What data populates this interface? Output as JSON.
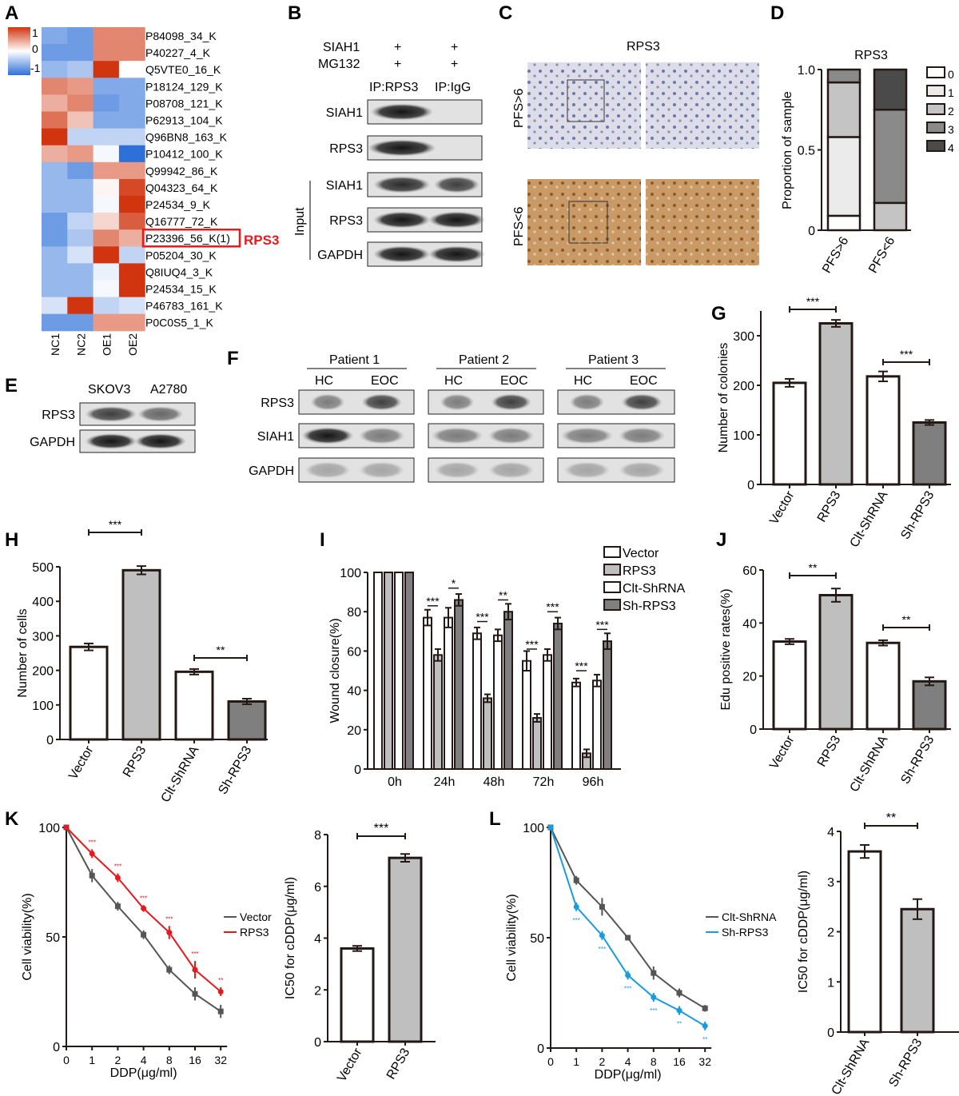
{
  "panel_letters": [
    "A",
    "B",
    "C",
    "D",
    "E",
    "F",
    "G",
    "H",
    "I",
    "J",
    "K",
    "L"
  ],
  "colors": {
    "red": "#e8191d",
    "blue": "#1a9be0",
    "dark": "#555555",
    "heat_high": "#d0350f",
    "heat_low": "#2f70d8",
    "mid_gray": "#7f7f7f",
    "light_gray": "#bfbfbf"
  },
  "heatmap": {
    "scale_labels": [
      "1",
      "0",
      "-1"
    ],
    "columns": [
      "NC1",
      "NC2",
      "OE1",
      "OE2"
    ],
    "rows": [
      {
        "label": "P84098_34_K",
        "values": [
          -0.6,
          -0.7,
          0.6,
          0.6
        ]
      },
      {
        "label": "P40227_4_K",
        "values": [
          -0.7,
          -0.7,
          0.6,
          0.6
        ]
      },
      {
        "label": "Q5VTE0_16_K",
        "values": [
          -0.5,
          -0.4,
          1,
          0
        ]
      },
      {
        "label": "P18124_129_K",
        "values": [
          0.6,
          0.5,
          -0.6,
          -0.6
        ]
      },
      {
        "label": "P08708_121_K",
        "values": [
          0.4,
          0.6,
          -0.7,
          -0.6
        ]
      },
      {
        "label": "P62913_104_K",
        "values": [
          0.7,
          0.3,
          -0.6,
          -0.6
        ]
      },
      {
        "label": "Q96BN8_163_K",
        "values": [
          1,
          -0.3,
          -0.3,
          -0.3
        ]
      },
      {
        "label": "P10412_100_K",
        "values": [
          0.4,
          0.5,
          -0.05,
          -1
        ]
      },
      {
        "label": "Q99942_86_K",
        "values": [
          -0.5,
          -0.7,
          0.5,
          0.5
        ]
      },
      {
        "label": "Q04323_64_K",
        "values": [
          -0.5,
          -0.5,
          0.05,
          0.9
        ]
      },
      {
        "label": "P24534_9_K",
        "values": [
          -0.5,
          -0.5,
          -0.05,
          1
        ]
      },
      {
        "label": "Q16777_72_K",
        "values": [
          -0.7,
          -0.3,
          0.2,
          0.8
        ]
      },
      {
        "label": "P23396_56_K(1)",
        "values": [
          -0.7,
          -0.4,
          0.6,
          0.4
        ]
      },
      {
        "label": "P05204_30_K",
        "values": [
          -0.5,
          -0.2,
          1,
          -0.3
        ]
      },
      {
        "label": "Q8IUQ4_3_K",
        "values": [
          -0.5,
          -0.5,
          -0.1,
          1
        ]
      },
      {
        "label": "P24534_15_K",
        "values": [
          -0.5,
          -0.5,
          -0.05,
          1
        ]
      },
      {
        "label": "P46783_161_K",
        "values": [
          -0.2,
          1,
          -0.3,
          -0.2
        ]
      },
      {
        "label": "P0C0S5_1_K",
        "values": [
          -0.7,
          -0.7,
          0.5,
          0.5
        ]
      }
    ],
    "highlight": "RPS3"
  },
  "panel_b": {
    "row1": "SIAH1",
    "row2": "MG132",
    "plus": "+",
    "ip_rps3": "IP:RPS3",
    "ip_igg": "IP:IgG",
    "input": "Input",
    "bands": [
      "SIAH1",
      "RPS3",
      "SIAH1",
      "RPS3",
      "GAPDH"
    ]
  },
  "panel_c": {
    "title": "RPS3",
    "row_top": "PFS>6",
    "row_bottom": "PFS<6"
  },
  "panel_e": {
    "cols": [
      "SKOV3",
      "A2780"
    ],
    "bands": [
      "RPS3",
      "GAPDH"
    ]
  },
  "panel_f": {
    "patients": [
      "Patient 1",
      "Patient 2",
      "Patient 3"
    ],
    "hc": "HC",
    "eoc": "EOC",
    "bands": [
      "RPS3",
      "SIAH1",
      "GAPDH"
    ]
  },
  "chart_data": [
    {
      "id": "D",
      "type": "bar",
      "stacked": true,
      "title": "RPS3",
      "ylabel": "Proportion of sample",
      "categories": [
        "PFS>6",
        "PFS<6"
      ],
      "ylim": [
        0,
        1
      ],
      "yticks": [
        "0",
        "0.5",
        "1.0"
      ],
      "series": [
        {
          "name": "0",
          "color": "#ffffff",
          "values": [
            0.09,
            0
          ]
        },
        {
          "name": "1",
          "color": "#ebebeb",
          "values": [
            0.49,
            0
          ]
        },
        {
          "name": "2",
          "color": "#c4c4c4",
          "values": [
            0.34,
            0.17
          ]
        },
        {
          "name": "3",
          "color": "#8a8a8a",
          "values": [
            0.08,
            0.58
          ]
        },
        {
          "name": "4",
          "color": "#4a4a4a",
          "values": [
            0,
            0.25
          ]
        }
      ]
    },
    {
      "id": "G",
      "type": "bar",
      "ylabel": "Number of colonies",
      "categories": [
        "Vector",
        "RPS3",
        "Clt-ShRNA",
        "Sh-RPS3"
      ],
      "values": [
        205,
        325,
        218,
        125
      ],
      "errors": [
        8,
        7,
        10,
        5
      ],
      "ylim": [
        0,
        350
      ],
      "yticks": [
        "0",
        "100",
        "200",
        "300"
      ],
      "significance": [
        {
          "pair": [
            0,
            1
          ],
          "label": "***"
        },
        {
          "pair": [
            2,
            3
          ],
          "label": "***"
        }
      ]
    },
    {
      "id": "H",
      "type": "bar",
      "ylabel": "Number of cells",
      "categories": [
        "Vector",
        "RPS3",
        "Clt-ShRNA",
        "Sh-RPS3"
      ],
      "values": [
        268,
        490,
        196,
        110
      ],
      "errors": [
        10,
        12,
        8,
        8
      ],
      "ylim": [
        0,
        500
      ],
      "yticks": [
        "0",
        "100",
        "200",
        "300",
        "400",
        "500"
      ],
      "significance": [
        {
          "pair": [
            0,
            1
          ],
          "label": "***"
        },
        {
          "pair": [
            2,
            3
          ],
          "label": "**"
        }
      ]
    },
    {
      "id": "I",
      "type": "bar",
      "ylabel": "Wound closure(%)",
      "categories": [
        "0h",
        "24h",
        "48h",
        "72h",
        "96h"
      ],
      "ylim": [
        0,
        100
      ],
      "yticks": [
        "0",
        "20",
        "40",
        "60",
        "80",
        "100"
      ],
      "series": [
        {
          "name": "Vector",
          "values": [
            100,
            77,
            69,
            55,
            44
          ],
          "errors": [
            0,
            4,
            3,
            5,
            2
          ]
        },
        {
          "name": "RPS3",
          "values": [
            100,
            58,
            36,
            26,
            8
          ],
          "errors": [
            0,
            3,
            2,
            2,
            2
          ]
        },
        {
          "name": "Clt-ShRNA",
          "values": [
            100,
            77,
            68,
            58,
            45
          ],
          "errors": [
            0,
            5,
            3,
            3,
            3
          ]
        },
        {
          "name": "Sh-RPS3",
          "values": [
            100,
            86,
            80,
            74,
            65
          ],
          "errors": [
            0,
            3,
            4,
            3,
            4
          ]
        }
      ],
      "significance": [
        "***",
        "*",
        "***",
        "**",
        "***",
        "***",
        "***",
        "***"
      ]
    },
    {
      "id": "J",
      "type": "bar",
      "ylabel": "Edu positive rates(%)",
      "categories": [
        "Vector",
        "RPS3",
        "Clt-ShRNA",
        "Sh-RPS3"
      ],
      "values": [
        33,
        50.5,
        32.5,
        18
      ],
      "errors": [
        1,
        2.5,
        1,
        1.5
      ],
      "ylim": [
        0,
        60
      ],
      "yticks": [
        "0",
        "20",
        "40",
        "60"
      ],
      "significance": [
        {
          "pair": [
            0,
            1
          ],
          "label": "**"
        },
        {
          "pair": [
            2,
            3
          ],
          "label": "**"
        }
      ]
    },
    {
      "id": "K1",
      "type": "line",
      "xlabel": "DDP(μg/ml)",
      "ylabel": "Cell viability(%)",
      "x": [
        "0",
        "1",
        "2",
        "4",
        "8",
        "16",
        "32"
      ],
      "ylim": [
        0,
        100
      ],
      "yticks": [
        "0",
        "50",
        "100"
      ],
      "series": [
        {
          "name": "Vector",
          "color": "#555555",
          "values": [
            100,
            78,
            64,
            51,
            35,
            24,
            16
          ],
          "errors": [
            0,
            3,
            2,
            2,
            2,
            3,
            3
          ]
        },
        {
          "name": "RPS3",
          "color": "#e8191d",
          "values": [
            100,
            88,
            77,
            63,
            52,
            35,
            25
          ],
          "errors": [
            0,
            2,
            2,
            1.5,
            3,
            4,
            2
          ]
        }
      ],
      "annotations": [
        "",
        "***",
        "***",
        "***",
        "***",
        "***",
        "**"
      ]
    },
    {
      "id": "K2",
      "type": "bar",
      "ylabel": "IC50 for cDDP(μg/ml)",
      "categories": [
        "Vector",
        "RPS3"
      ],
      "values": [
        3.6,
        7.1
      ],
      "errors": [
        0.1,
        0.15
      ],
      "ylim": [
        0,
        8
      ],
      "yticks": [
        "0",
        "2",
        "4",
        "6",
        "8"
      ],
      "significance": [
        {
          "pair": [
            0,
            1
          ],
          "label": "***"
        }
      ]
    },
    {
      "id": "L1",
      "type": "line",
      "xlabel": "DDP(μg/ml)",
      "ylabel": "Cell viability(%)",
      "x": [
        "0",
        "1",
        "2",
        "4",
        "8",
        "16",
        "32"
      ],
      "ylim": [
        0,
        100
      ],
      "yticks": [
        "0",
        "50",
        "100"
      ],
      "series": [
        {
          "name": "Clt-ShRNA",
          "color": "#555555",
          "values": [
            100,
            76,
            64,
            50,
            34,
            25,
            18
          ],
          "errors": [
            0,
            2,
            4,
            1,
            3,
            2,
            1.5
          ]
        },
        {
          "name": "Sh-RPS3",
          "color": "#1a9be0",
          "values": [
            100,
            64,
            51,
            33,
            23,
            17,
            10
          ],
          "errors": [
            0,
            2,
            2,
            2,
            2,
            2,
            2
          ]
        }
      ],
      "annotations": [
        "",
        "***",
        "***",
        "***",
        "***",
        "**",
        "**"
      ]
    },
    {
      "id": "L2",
      "type": "bar",
      "ylabel": "IC50 for cDDP(μg/ml)",
      "categories": [
        "Clt-ShRNA",
        "Sh-RPS3"
      ],
      "values": [
        3.6,
        2.45
      ],
      "errors": [
        0.13,
        0.2
      ],
      "ylim": [
        0,
        4
      ],
      "yticks": [
        "0",
        "1",
        "2",
        "3",
        "4"
      ],
      "significance": [
        {
          "pair": [
            0,
            1
          ],
          "label": "**"
        }
      ]
    }
  ]
}
